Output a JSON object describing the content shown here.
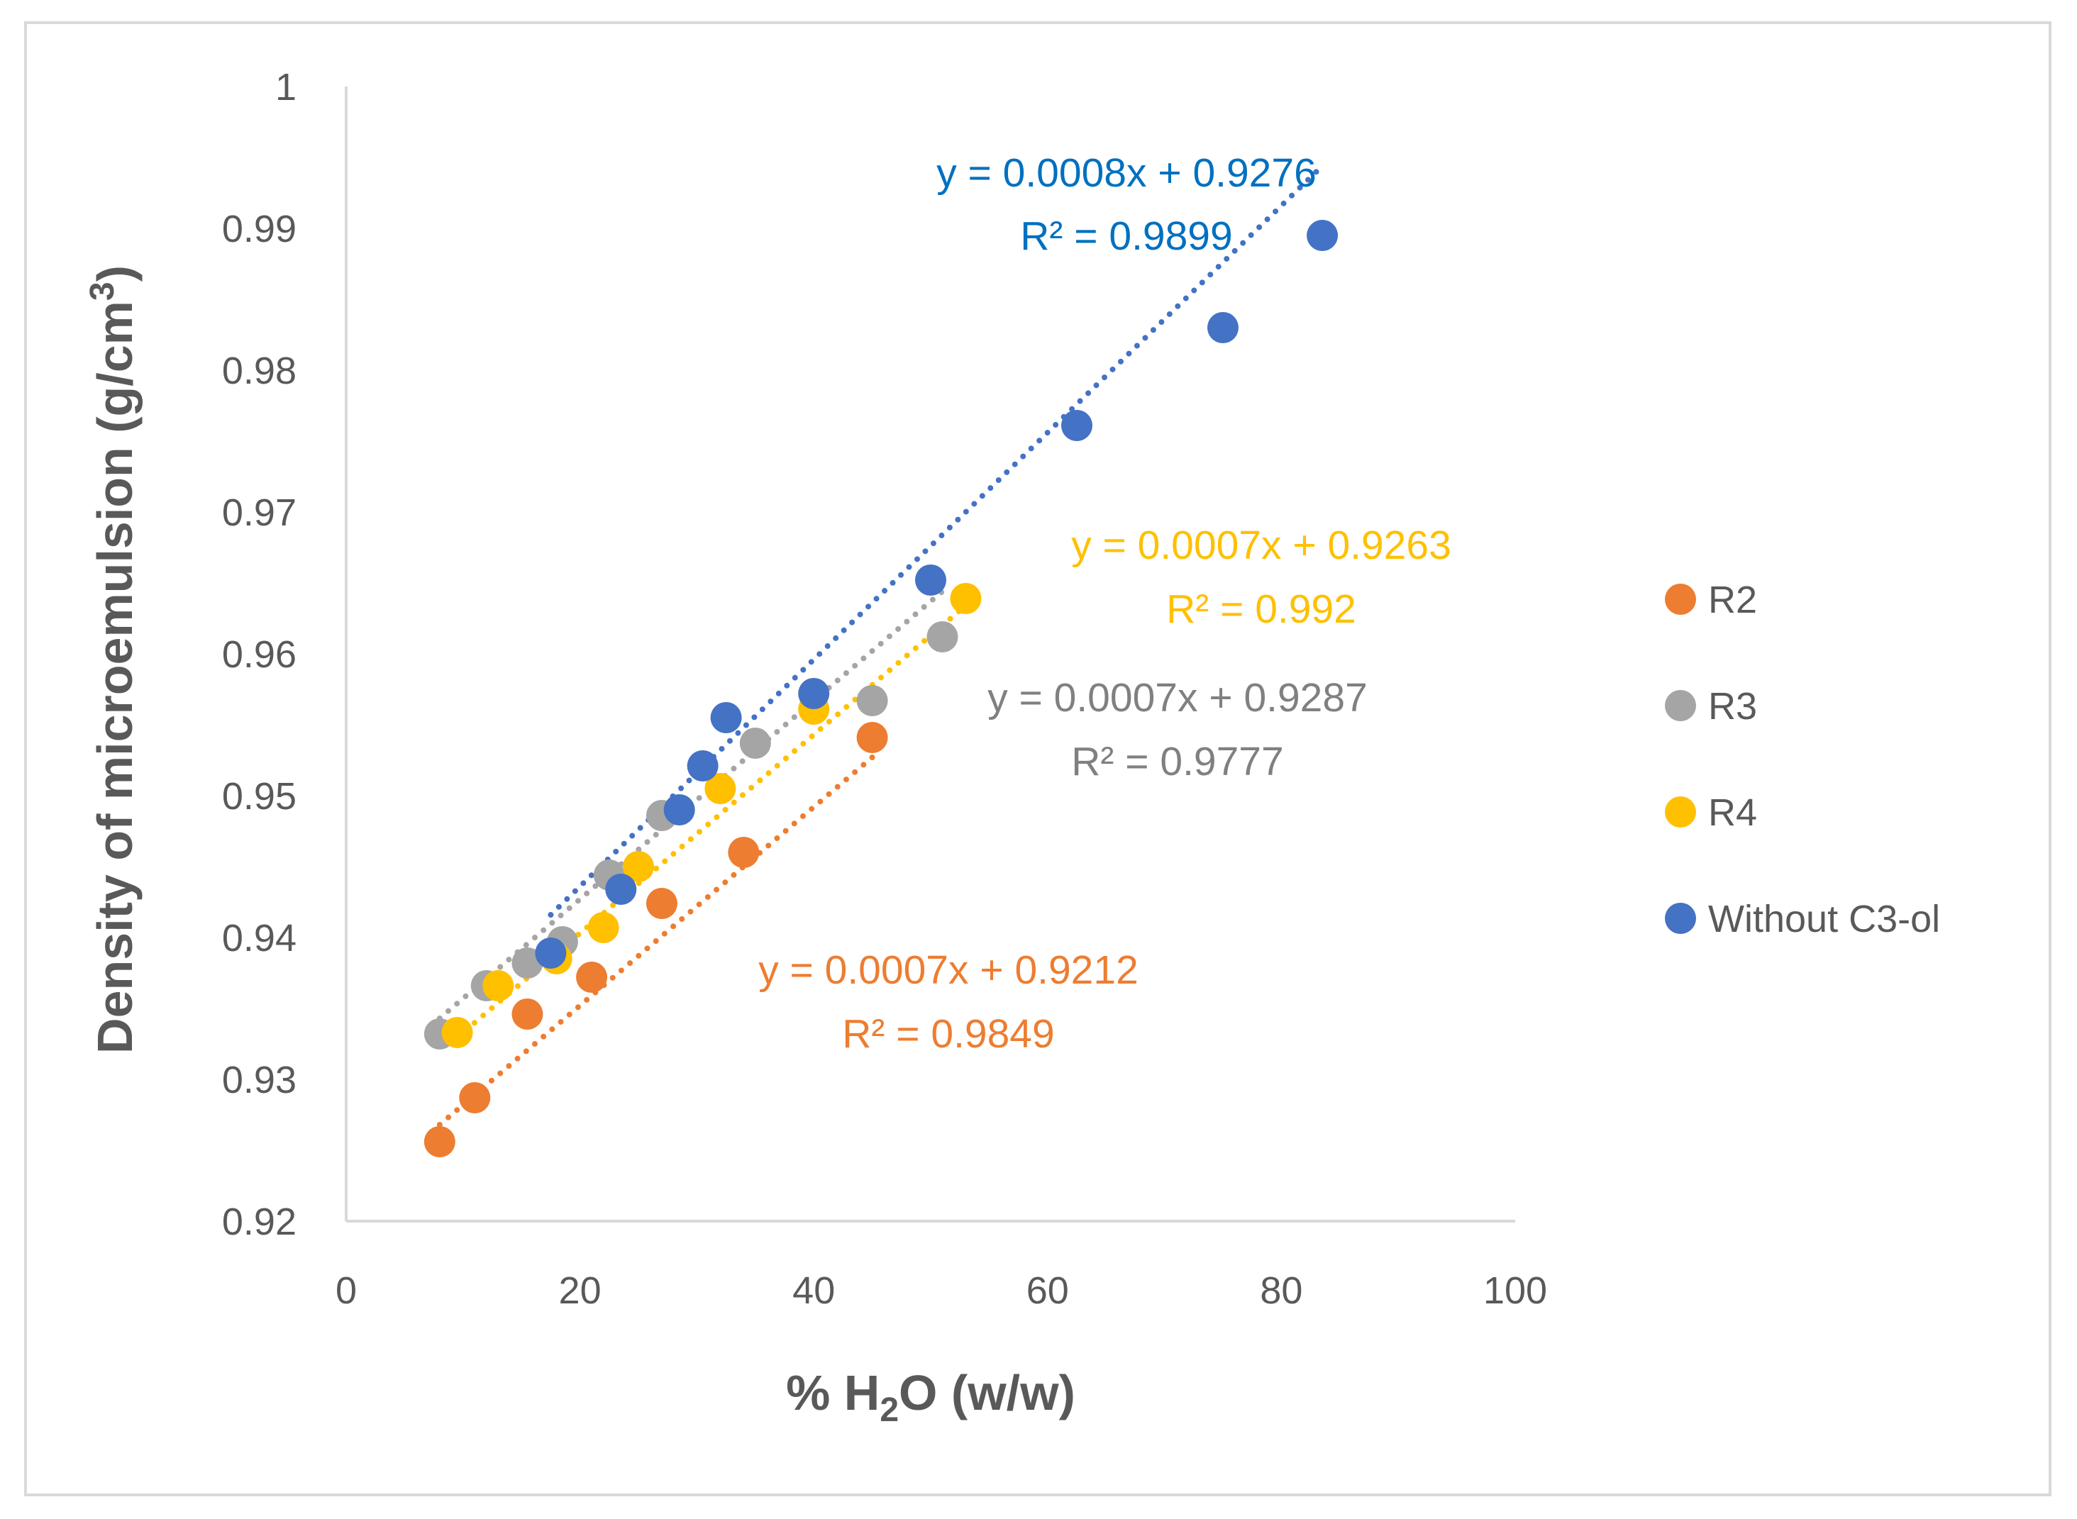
{
  "chart_data": {
    "type": "scatter",
    "title": "",
    "xlabel": "% H2O (w/w)",
    "xlabel_parts": {
      "pre": "% H",
      "sub": "2",
      "post": "O (w/w)"
    },
    "ylabel": "Density of microemulsion (g/cm3)",
    "ylabel_parts": {
      "pre": "Density of microemulsion (g/cm",
      "sup": "3",
      "post": ")"
    },
    "xlim": [
      0,
      100
    ],
    "ylim": [
      0.92,
      1
    ],
    "x_ticks": [
      0,
      20,
      40,
      60,
      80,
      100
    ],
    "y_ticks": [
      0.92,
      0.93,
      0.94,
      0.95,
      0.96,
      0.97,
      0.98,
      0.99,
      1
    ],
    "y_tick_labels": [
      "0.92",
      "0.93",
      "0.94",
      "0.95",
      "0.96",
      "0.97",
      "0.98",
      "0.99",
      "1"
    ],
    "grid": false,
    "legend_position": "right",
    "series": [
      {
        "name": "R2",
        "color": "#ED7D31",
        "points": [
          [
            8,
            0.9256
          ],
          [
            11,
            0.9287
          ],
          [
            15.5,
            0.9346
          ],
          [
            21,
            0.9372
          ],
          [
            27,
            0.9424
          ],
          [
            34,
            0.946
          ],
          [
            45,
            0.9541
          ]
        ],
        "trend": {
          "slope": 0.0007,
          "intercept": 0.9212,
          "x_range": [
            8,
            45
          ]
        },
        "equation": "y = 0.0007x + 0.9212",
        "r2_label": "R² = 0.9849"
      },
      {
        "name": "R3",
        "color": "#A5A5A5",
        "points": [
          [
            8,
            0.9332
          ],
          [
            12,
            0.9366
          ],
          [
            15.5,
            0.9382
          ],
          [
            18.5,
            0.9397
          ],
          [
            22.5,
            0.9444
          ],
          [
            27,
            0.9486
          ],
          [
            35,
            0.9537
          ],
          [
            45,
            0.9567
          ],
          [
            51,
            0.9612
          ]
        ],
        "trend": {
          "slope": 0.0007,
          "intercept": 0.9287,
          "x_range": [
            8,
            51
          ]
        },
        "equation": "y = 0.0007x + 0.9287",
        "r2_label": "R² = 0.9777"
      },
      {
        "name": "R4",
        "color": "#FFC000",
        "points": [
          [
            9.5,
            0.9333
          ],
          [
            13,
            0.9366
          ],
          [
            18,
            0.9385
          ],
          [
            22,
            0.9407
          ],
          [
            25,
            0.945
          ],
          [
            32,
            0.9505
          ],
          [
            40,
            0.9561
          ],
          [
            53,
            0.9639
          ]
        ],
        "trend": {
          "slope": 0.0007,
          "intercept": 0.9263,
          "x_range": [
            9.5,
            53
          ]
        },
        "equation": "y = 0.0007x + 0.9263",
        "r2_label": "R² = 0.992"
      },
      {
        "name": "Without C3-ol",
        "color": "#4472C4",
        "points": [
          [
            17.5,
            0.9389
          ],
          [
            23.5,
            0.9434
          ],
          [
            28.5,
            0.949
          ],
          [
            30.5,
            0.9521
          ],
          [
            32.5,
            0.9555
          ],
          [
            40,
            0.9572
          ],
          [
            50,
            0.9652
          ],
          [
            62.5,
            0.9761
          ],
          [
            75,
            0.983
          ],
          [
            83.5,
            0.9895
          ]
        ],
        "trend": {
          "slope": 0.0008,
          "intercept": 0.9276,
          "x_range": [
            17.5,
            83.5
          ]
        },
        "equation": "y = 0.0008x + 0.9276",
        "r2_label": "R² = 0.9899"
      }
    ]
  },
  "label_colors": {
    "R2": "#ED7D31",
    "R3": "#808080",
    "R4": "#FFC000",
    "Without C3-ol": "#0070C0"
  }
}
